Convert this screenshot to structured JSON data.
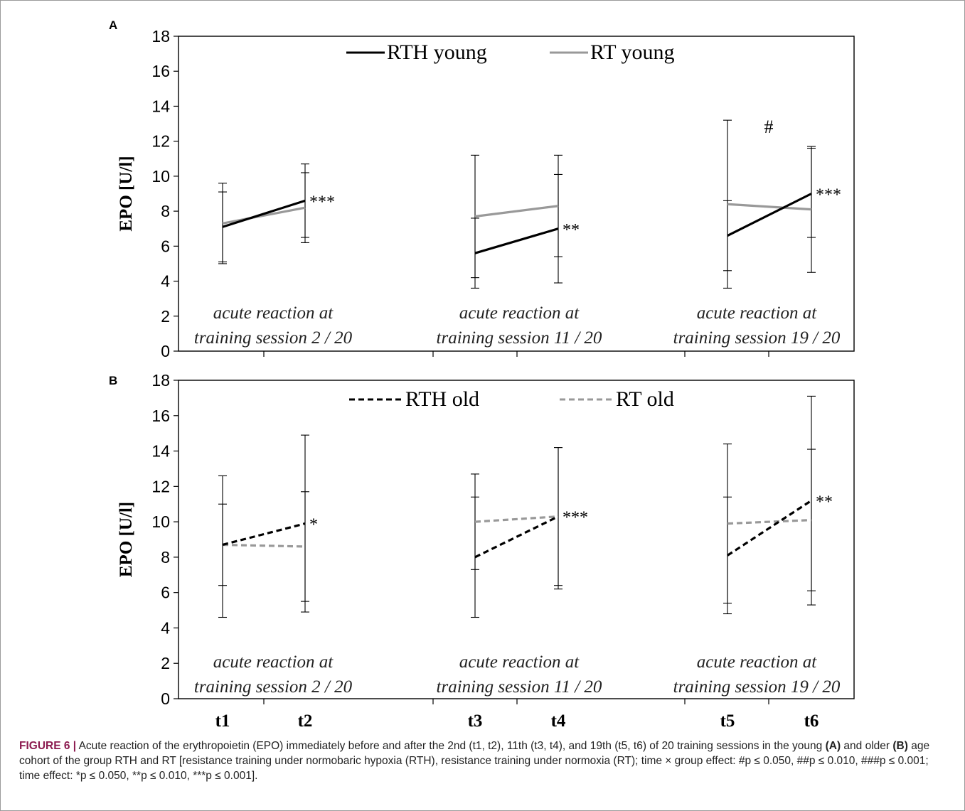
{
  "figure": {
    "caption_label": "FIGURE 6 |",
    "caption_part1": " Acute reaction of the erythropoietin (EPO) immediately before and after the 2nd (t1, t2), 11th (t3, t4), and 19th (t5, t6) of 20 training sessions in the young ",
    "caption_a": "(A)",
    "caption_part2": " and older ",
    "caption_b": "(B)",
    "caption_part3": " age cohort of the group RTH and RT [resistance training under normobaric hypoxia (RTH), resistance training under normoxia (RT); time × group effect: #p ≤ 0.050, ##p ≤ 0.010, ###p ≤ 0.001; time effect: *p ≤ 0.050, **p ≤ 0.010, ***p ≤ 0.001]."
  },
  "chart_data": [
    {
      "panel": "A",
      "type": "line",
      "ylabel": "EPO [U/l]",
      "ylim": [
        0,
        18
      ],
      "yticks": [
        0,
        2,
        4,
        6,
        8,
        10,
        12,
        14,
        16,
        18
      ],
      "x": [
        "t1",
        "t2",
        "t3",
        "t4",
        "t5",
        "t6"
      ],
      "legend_position": "top-center",
      "session_labels": [
        [
          "acute reaction at",
          "training session 2 / 20"
        ],
        [
          "acute reaction at",
          "training session 11 / 20"
        ],
        [
          "acute reaction at",
          "training session 19 / 20"
        ]
      ],
      "series": [
        {
          "name": "RTH young",
          "color": "#000000",
          "dash": "solid",
          "segments": [
            {
              "x": [
                "t1",
                "t2"
              ],
              "values": [
                7.1,
                8.6
              ],
              "err_low": [
                5.1,
                6.5
              ],
              "err_high": [
                9.1,
                10.7
              ]
            },
            {
              "x": [
                "t3",
                "t4"
              ],
              "values": [
                5.6,
                7.0
              ],
              "err_low": [
                3.6,
                3.9
              ],
              "err_high": [
                7.6,
                10.1
              ]
            },
            {
              "x": [
                "t5",
                "t6"
              ],
              "values": [
                6.6,
                9.0
              ],
              "err_low": [
                3.6,
                6.5
              ],
              "err_high": [
                8.6,
                11.7
              ]
            }
          ]
        },
        {
          "name": "RT young",
          "color": "#999999",
          "dash": "solid",
          "segments": [
            {
              "x": [
                "t1",
                "t2"
              ],
              "values": [
                7.3,
                8.2
              ],
              "err_low": [
                5.0,
                6.2
              ],
              "err_high": [
                9.6,
                10.2
              ]
            },
            {
              "x": [
                "t3",
                "t4"
              ],
              "values": [
                7.7,
                8.3
              ],
              "err_low": [
                4.2,
                5.4
              ],
              "err_high": [
                11.2,
                11.2
              ]
            },
            {
              "x": [
                "t5",
                "t6"
              ],
              "values": [
                8.4,
                8.1
              ],
              "err_low": [
                4.6,
                4.5
              ],
              "err_high": [
                13.2,
                11.6
              ]
            }
          ]
        }
      ],
      "annotations": [
        {
          "text": "***",
          "x": "t2",
          "y": 8.8
        },
        {
          "text": "**",
          "x": "t4",
          "y": 7.2
        },
        {
          "text": "***",
          "x": "t6",
          "y": 9.2
        },
        {
          "text": "#",
          "x": "t5-t6",
          "y": 12.8
        }
      ]
    },
    {
      "panel": "B",
      "type": "line",
      "ylabel": "EPO [U/l]",
      "ylim": [
        0,
        18
      ],
      "yticks": [
        0,
        2,
        4,
        6,
        8,
        10,
        12,
        14,
        16,
        18
      ],
      "x": [
        "t1",
        "t2",
        "t3",
        "t4",
        "t5",
        "t6"
      ],
      "legend_position": "top-center",
      "session_labels": [
        [
          "acute reaction at",
          "training session 2 / 20"
        ],
        [
          "acute reaction at",
          "training session 11 / 20"
        ],
        [
          "acute reaction at",
          "training session 19 / 20"
        ]
      ],
      "series": [
        {
          "name": "RTH old",
          "color": "#000000",
          "dash": "dashed",
          "segments": [
            {
              "x": [
                "t1",
                "t2"
              ],
              "values": [
                8.7,
                9.9
              ],
              "err_low": [
                6.4,
                4.9
              ],
              "err_high": [
                11.0,
                14.9
              ]
            },
            {
              "x": [
                "t3",
                "t4"
              ],
              "values": [
                8.0,
                10.3
              ],
              "err_low": [
                4.6,
                6.2
              ],
              "err_high": [
                11.4,
                14.2
              ]
            },
            {
              "x": [
                "t5",
                "t6"
              ],
              "values": [
                8.1,
                11.2
              ],
              "err_low": [
                4.8,
                5.3
              ],
              "err_high": [
                11.4,
                17.1
              ]
            }
          ]
        },
        {
          "name": "RT old",
          "color": "#999999",
          "dash": "dashed",
          "segments": [
            {
              "x": [
                "t1",
                "t2"
              ],
              "values": [
                8.7,
                8.6
              ],
              "err_low": [
                4.6,
                5.5
              ],
              "err_high": [
                12.6,
                11.7
              ]
            },
            {
              "x": [
                "t3",
                "t4"
              ],
              "values": [
                10.0,
                10.3
              ],
              "err_low": [
                7.3,
                6.4
              ],
              "err_high": [
                12.7,
                14.2
              ]
            },
            {
              "x": [
                "t5",
                "t6"
              ],
              "values": [
                9.9,
                10.1
              ],
              "err_low": [
                5.4,
                6.1
              ],
              "err_high": [
                14.4,
                14.1
              ]
            }
          ]
        }
      ],
      "annotations": [
        {
          "text": "*",
          "x": "t2",
          "y": 10.1
        },
        {
          "text": "***",
          "x": "t4",
          "y": 10.5
        },
        {
          "text": "**",
          "x": "t6",
          "y": 11.4
        }
      ]
    }
  ]
}
